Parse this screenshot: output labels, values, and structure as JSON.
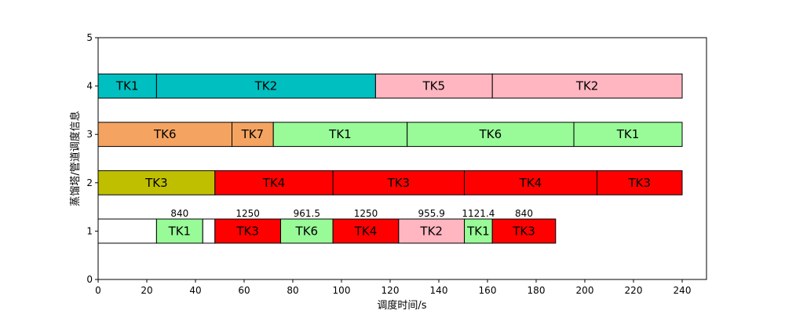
{
  "chart_data": {
    "type": "gantt",
    "xlabel": "调度时间/s",
    "ylabel": "蒸馏塔/管道调度信息",
    "xlim": [
      0,
      250
    ],
    "ylim": [
      0,
      5
    ],
    "xticks": [
      0,
      20,
      40,
      60,
      80,
      100,
      120,
      140,
      160,
      180,
      200,
      220,
      240
    ],
    "yticks": [
      0,
      1,
      2,
      3,
      4,
      5
    ],
    "grid": false,
    "colors": {
      "cyan": "#00bfc0",
      "pink": "#ffb6c1",
      "orange": "#f4a460",
      "lightgreen": "#98fb98",
      "olive": "#bfbf00",
      "red": "#ff0000",
      "white": "#ffffff"
    },
    "rows": [
      {
        "y": 4,
        "segments": [
          {
            "start": 0,
            "end": 24,
            "label": "TK1",
            "color": "cyan"
          },
          {
            "start": 24,
            "end": 114,
            "label": "TK2",
            "color": "cyan"
          },
          {
            "start": 114,
            "end": 162,
            "label": "TK5",
            "color": "pink"
          },
          {
            "start": 162,
            "end": 240,
            "label": "TK2",
            "color": "pink"
          }
        ]
      },
      {
        "y": 3,
        "segments": [
          {
            "start": 0,
            "end": 55,
            "label": "TK6",
            "color": "orange"
          },
          {
            "start": 55,
            "end": 72,
            "label": "TK7",
            "color": "orange"
          },
          {
            "start": 72,
            "end": 127,
            "label": "TK1",
            "color": "lightgreen"
          },
          {
            "start": 127,
            "end": 195.5,
            "label": "TK6",
            "color": "lightgreen"
          },
          {
            "start": 195.5,
            "end": 240,
            "label": "TK1",
            "color": "lightgreen"
          }
        ]
      },
      {
        "y": 2,
        "segments": [
          {
            "start": 0,
            "end": 48,
            "label": "TK3",
            "color": "olive"
          },
          {
            "start": 48,
            "end": 96.5,
            "label": "TK4",
            "color": "red"
          },
          {
            "start": 96.5,
            "end": 150.5,
            "label": "TK3",
            "color": "red"
          },
          {
            "start": 150.5,
            "end": 205,
            "label": "TK4",
            "color": "red"
          },
          {
            "start": 205,
            "end": 240,
            "label": "TK3",
            "color": "red"
          }
        ]
      },
      {
        "y": 1,
        "segments": [
          {
            "start": 0,
            "end": 24,
            "label": "",
            "color": "white"
          },
          {
            "start": 24,
            "end": 43,
            "label": "TK1",
            "color": "lightgreen",
            "annotation": "840"
          },
          {
            "start": 43,
            "end": 48,
            "label": "",
            "color": "white"
          },
          {
            "start": 48,
            "end": 75,
            "label": "TK3",
            "color": "red",
            "annotation": "1250"
          },
          {
            "start": 75,
            "end": 96.5,
            "label": "TK6",
            "color": "lightgreen",
            "annotation": "961.5"
          },
          {
            "start": 96.5,
            "end": 123.5,
            "label": "TK4",
            "color": "red",
            "annotation": "1250"
          },
          {
            "start": 123.5,
            "end": 150.5,
            "label": "TK2",
            "color": "pink",
            "annotation": "955.9"
          },
          {
            "start": 150.5,
            "end": 162,
            "label": "TK1",
            "color": "lightgreen",
            "annotation": "1121.4"
          },
          {
            "start": 162,
            "end": 188,
            "label": "TK3",
            "color": "red",
            "annotation": "840"
          }
        ]
      }
    ]
  }
}
